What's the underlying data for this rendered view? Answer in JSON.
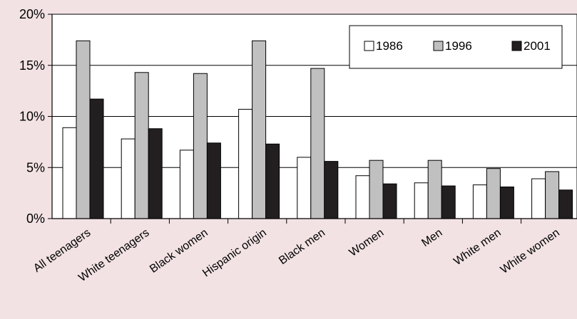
{
  "chart_data": {
    "type": "bar",
    "title": "",
    "xlabel": "",
    "ylabel": "",
    "ylim": [
      0,
      20
    ],
    "y_ticks": [
      0,
      5,
      10,
      15,
      20
    ],
    "y_tick_labels": [
      "0%",
      "5%",
      "10%",
      "15%",
      "20%"
    ],
    "grid": true,
    "legend_position": "top-right",
    "categories": [
      "All teenagers",
      "White teenagers",
      "Black women",
      "Hispanic origin",
      "Black men",
      "Women",
      "Men",
      "White men",
      "White women"
    ],
    "series": [
      {
        "name": "1986",
        "color": "#ffffff",
        "values": [
          8.9,
          7.8,
          6.7,
          10.7,
          6.0,
          4.2,
          3.5,
          3.3,
          3.9
        ]
      },
      {
        "name": "1996",
        "color": "#c0c0c0",
        "values": [
          17.4,
          14.3,
          14.2,
          17.4,
          14.7,
          5.7,
          5.7,
          4.9,
          4.6
        ]
      },
      {
        "name": "2001",
        "color": "#231f20",
        "values": [
          11.7,
          8.8,
          7.4,
          7.3,
          5.6,
          3.4,
          3.2,
          3.1,
          2.8
        ]
      }
    ]
  }
}
